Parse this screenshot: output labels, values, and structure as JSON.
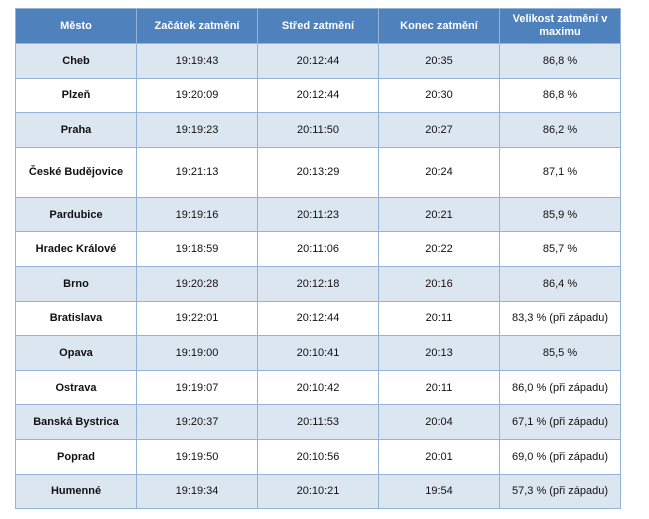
{
  "table": {
    "header": [
      "Město",
      "Začátek zatmění",
      "Střed zatmění",
      "Konec zatmění",
      "Velikost zatmění v maximu"
    ],
    "rows": [
      [
        "Cheb",
        "19:19:43",
        "20:12:44",
        "20:35",
        "86,8 %"
      ],
      [
        "Plzeň",
        "19:20:09",
        "20:12:44",
        "20:30",
        "86,8 %"
      ],
      [
        "Praha",
        "19:19:23",
        "20:11:50",
        "20:27",
        "86,2 %"
      ],
      [
        "České Budějovice",
        "19:21:13",
        "20:13:29",
        "20:24",
        "87,1 %"
      ],
      [
        "Pardubice",
        "19:19:16",
        "20:11:23",
        "20:21",
        "85,9 %"
      ],
      [
        "Hradec Králové",
        "19:18:59",
        "20:11:06",
        "20:22",
        "85,7 %"
      ],
      [
        "Brno",
        "19:20:28",
        "20:12:18",
        "20:16",
        "86,4 %"
      ],
      [
        "Bratislava",
        "19:22:01",
        "20:12:44",
        "20:11",
        "83,3 % (při západu)"
      ],
      [
        "Opava",
        "19:19:00",
        "20:10:41",
        "20:13",
        "85,5 %"
      ],
      [
        "Ostrava",
        "19:19:07",
        "20:10:42",
        "20:11",
        "86,0 % (při západu)"
      ],
      [
        "Banská Bystrica",
        "19:20:37",
        "20:11:53",
        "20:04",
        "67,1 % (při západu)"
      ],
      [
        "Poprad",
        "19:19:50",
        "20:10:56",
        "20:01",
        "69,0 % (při západu)"
      ],
      [
        "Humenné",
        "19:19:34",
        "20:10:21",
        "19:54",
        "57,3 % (při západu)"
      ]
    ]
  }
}
